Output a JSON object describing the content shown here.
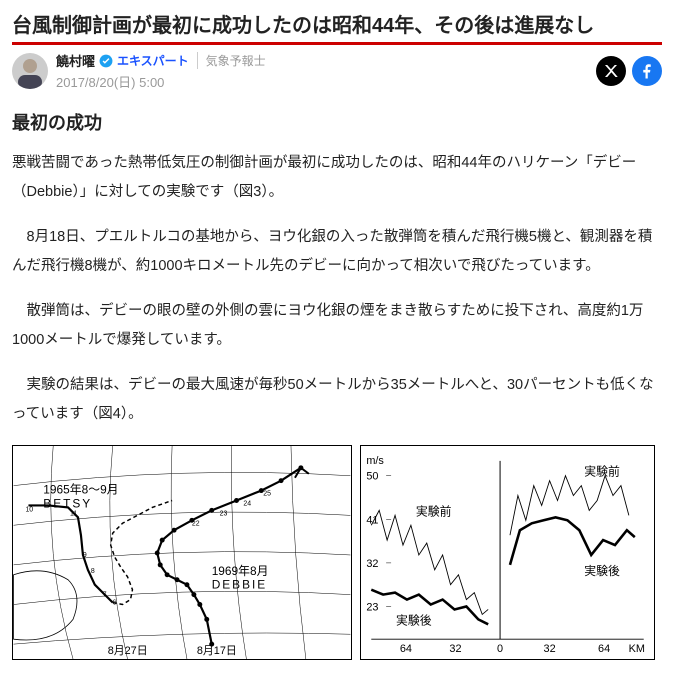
{
  "headline": "台風制御計画が最初に成功したのは昭和44年、その後は進展なし",
  "author": {
    "name": "饒村曜",
    "expert_label": "エキスパート",
    "role": "気象予報士",
    "timestamp": "2017/8/20(日) 5:00"
  },
  "section_title": "最初の成功",
  "paragraphs": {
    "p1": "悪戦苦闘であった熱帯低気圧の制御計画が最初に成功したのは、昭和44年のハリケーン「デビー（Debbie）」に対しての実験です（図3）。",
    "p2": "8月18日、プエルトルコの基地から、ヨウ化銀の入った散弾筒を積んだ飛行機5機と、観測器を積んだ飛行機8機が、約1000キロメートル先のデビーに向かって相次いで飛びたっています。",
    "p3": "散弾筒は、デビーの眼の壁の外側の雲にヨウ化銀の煙をまき散らすために投下され、高度約1万1000メートルで爆発しています。",
    "p4": "実験の結果は、デビーの最大風速が毎秒50メートルから35メートルへと、30パーセントも低くなっています（図4）。"
  },
  "map": {
    "labels": {
      "betsy": "1965年8～9月",
      "betsy_name": "BETSY",
      "debbie": "1969年8月",
      "debbie_name": "DEBBIE",
      "date_left": "8月27日",
      "date_right": "8月17日"
    },
    "grid_color": "#000000",
    "debbie_track": [
      [
        200,
        200
      ],
      [
        195,
        175
      ],
      [
        188,
        160
      ],
      [
        182,
        150
      ],
      [
        175,
        140
      ],
      [
        165,
        135
      ],
      [
        155,
        130
      ],
      [
        148,
        120
      ],
      [
        145,
        108
      ],
      [
        150,
        95
      ],
      [
        162,
        85
      ],
      [
        180,
        75
      ],
      [
        200,
        65
      ],
      [
        225,
        55
      ],
      [
        250,
        45
      ],
      [
        270,
        35
      ],
      [
        290,
        22
      ]
    ],
    "debbie_points": [
      [
        200,
        200
      ],
      [
        195,
        175
      ],
      [
        188,
        160
      ],
      [
        182,
        150
      ],
      [
        175,
        140
      ],
      [
        165,
        135
      ],
      [
        155,
        130
      ],
      [
        148,
        120
      ],
      [
        145,
        108
      ],
      [
        150,
        95
      ],
      [
        162,
        85
      ],
      [
        180,
        75
      ],
      [
        200,
        65
      ],
      [
        225,
        55
      ],
      [
        250,
        45
      ],
      [
        270,
        35
      ],
      [
        290,
        22
      ]
    ],
    "betsy_track": [
      [
        15,
        60
      ],
      [
        35,
        60
      ],
      [
        55,
        62
      ],
      [
        65,
        72
      ],
      [
        68,
        90
      ],
      [
        70,
        110
      ],
      [
        75,
        125
      ],
      [
        82,
        140
      ],
      [
        92,
        150
      ],
      [
        100,
        158
      ]
    ],
    "betsy_dashed": [
      [
        100,
        158
      ],
      [
        110,
        160
      ],
      [
        118,
        155
      ],
      [
        120,
        145
      ],
      [
        115,
        132
      ],
      [
        108,
        122
      ],
      [
        102,
        112
      ],
      [
        98,
        100
      ],
      [
        100,
        88
      ],
      [
        110,
        78
      ],
      [
        125,
        70
      ],
      [
        140,
        62
      ],
      [
        160,
        55
      ]
    ]
  },
  "chart": {
    "y_label": "m/s",
    "x_label_right": "KM",
    "y_ticks": [
      "50",
      "41",
      "32",
      "23"
    ],
    "x_ticks_left": [
      "64",
      "32"
    ],
    "x_ticks_right": [
      "32",
      "64"
    ],
    "x_center": "0",
    "labels": {
      "before": "実験前",
      "after": "実験後"
    },
    "axis_color": "#000000",
    "left_before": [
      [
        10,
        80
      ],
      [
        18,
        65
      ],
      [
        26,
        95
      ],
      [
        34,
        70
      ],
      [
        42,
        100
      ],
      [
        50,
        80
      ],
      [
        58,
        110
      ],
      [
        66,
        98
      ],
      [
        74,
        125
      ],
      [
        82,
        110
      ],
      [
        90,
        140
      ],
      [
        98,
        130
      ],
      [
        106,
        155
      ],
      [
        114,
        148
      ],
      [
        122,
        170
      ],
      [
        128,
        165
      ]
    ],
    "left_after": [
      [
        10,
        145
      ],
      [
        22,
        150
      ],
      [
        34,
        148
      ],
      [
        46,
        155
      ],
      [
        58,
        150
      ],
      [
        70,
        160
      ],
      [
        82,
        155
      ],
      [
        94,
        165
      ],
      [
        106,
        162
      ],
      [
        118,
        175
      ],
      [
        128,
        180
      ]
    ],
    "right_before": [
      [
        150,
        90
      ],
      [
        158,
        50
      ],
      [
        166,
        75
      ],
      [
        174,
        40
      ],
      [
        182,
        60
      ],
      [
        190,
        35
      ],
      [
        198,
        55
      ],
      [
        206,
        30
      ],
      [
        214,
        50
      ],
      [
        222,
        40
      ],
      [
        230,
        65
      ],
      [
        238,
        55
      ],
      [
        246,
        30
      ],
      [
        254,
        50
      ],
      [
        262,
        40
      ],
      [
        270,
        70
      ]
    ],
    "right_after": [
      [
        150,
        120
      ],
      [
        160,
        85
      ],
      [
        172,
        78
      ],
      [
        184,
        75
      ],
      [
        196,
        72
      ],
      [
        208,
        75
      ],
      [
        220,
        85
      ],
      [
        232,
        110
      ],
      [
        244,
        95
      ],
      [
        256,
        100
      ],
      [
        268,
        85
      ],
      [
        276,
        92
      ]
    ]
  },
  "colors": {
    "headline_underline": "#cc0000",
    "text": "#222222",
    "muted": "#999999",
    "link": "#1a52ff",
    "x_bg": "#000000",
    "fb_bg": "#1877f2",
    "verify": "#1da1f2"
  }
}
